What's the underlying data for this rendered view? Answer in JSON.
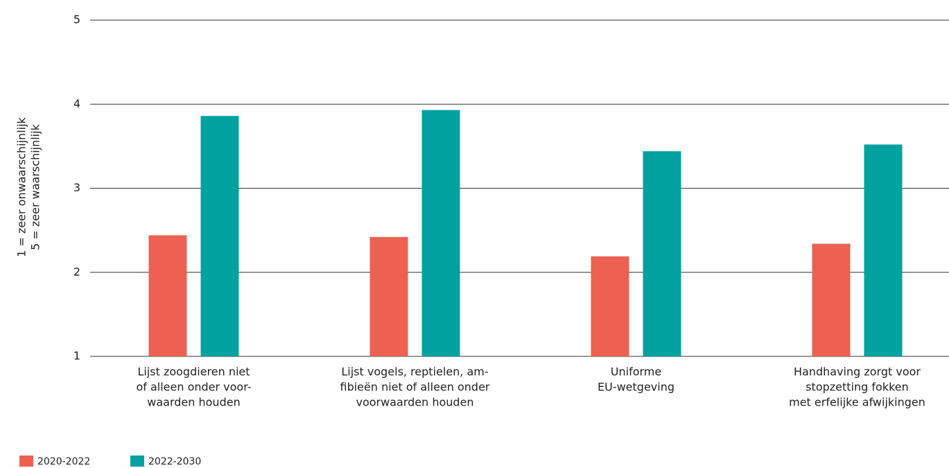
{
  "chart_data": {
    "type": "bar",
    "ylabel": [
      "1 = zeer onwaarschijnlijk",
      "5 = zeer waarschijnlijk"
    ],
    "categories": [
      [
        "Lijst zoogdieren niet",
        "of alleen onder voor-",
        "waarden houden"
      ],
      [
        "Lijst vogels, reptielen, am-",
        "fibieën niet of alleen onder",
        "voorwaarden houden"
      ],
      [
        "Uniforme",
        "EU-wetgeving"
      ],
      [
        "Handhaving zorgt voor",
        "stopzetting fokken",
        "met erfelijke afwijkingen"
      ]
    ],
    "series": [
      {
        "name": "2020-2022",
        "color": "#ec6152",
        "values": [
          2.44,
          2.42,
          2.19,
          2.34
        ]
      },
      {
        "name": "2022-2030",
        "color": "#00a19f",
        "values": [
          3.86,
          3.93,
          3.44,
          3.52
        ]
      }
    ],
    "ylim": [
      1,
      5
    ],
    "yticks": [
      1,
      2,
      3,
      4,
      5
    ],
    "grid": true,
    "legend": "bottom-left"
  }
}
